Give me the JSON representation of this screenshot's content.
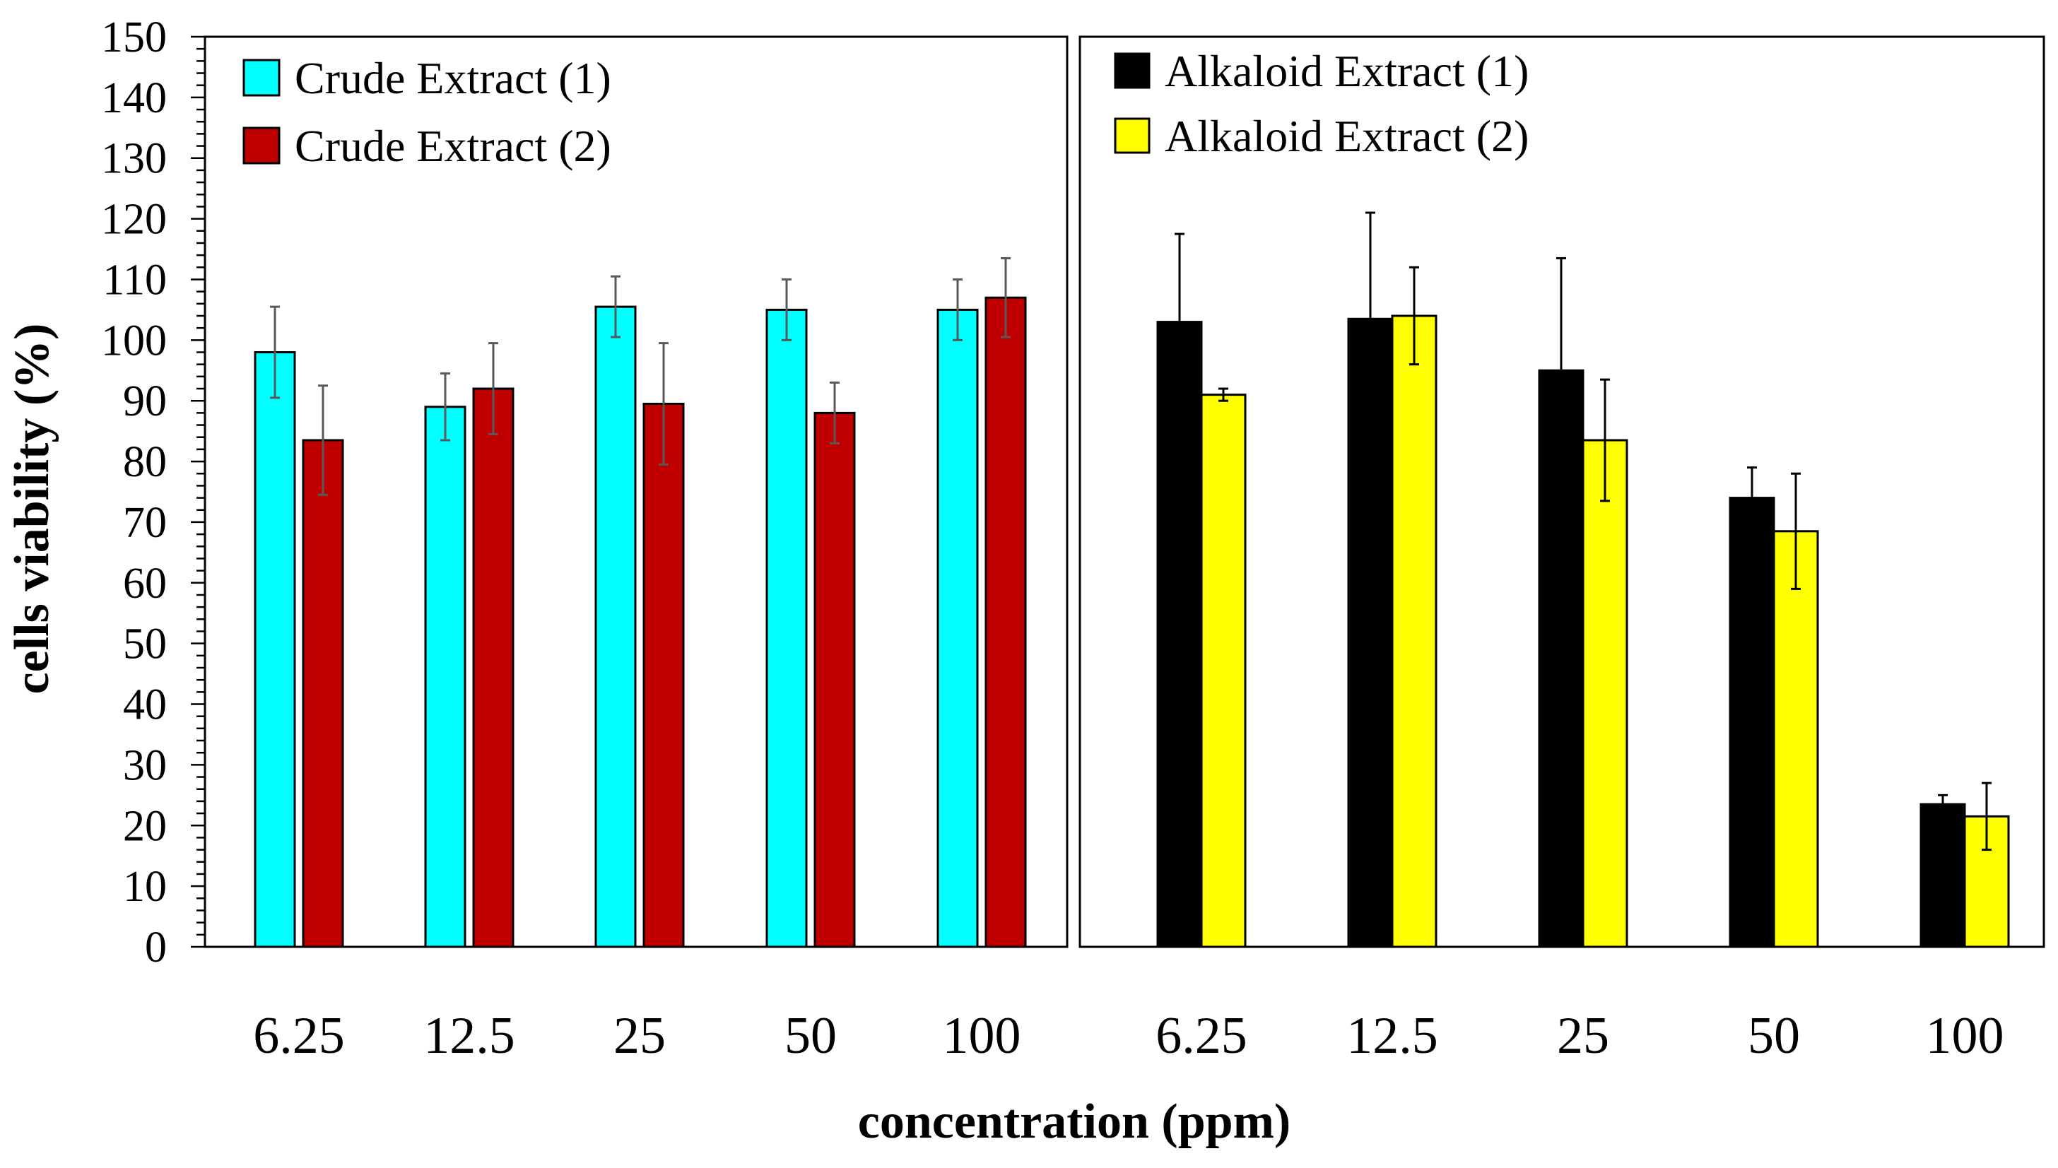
{
  "chart_data": {
    "type": "bar",
    "xlabel": "concentration (ppm)",
    "ylabel": "cells viability (%)",
    "ylim": [
      0,
      150
    ],
    "yticks": [
      "0",
      "10",
      "20",
      "30",
      "40",
      "50",
      "60",
      "70",
      "80",
      "90",
      "100",
      "110",
      "120",
      "130",
      "140",
      "150"
    ],
    "panels": [
      {
        "categories": [
          "6.25",
          "12.5",
          "25",
          "50",
          "100"
        ],
        "series": [
          {
            "name": "Crude Extract (1)",
            "color": "#00ffff",
            "errorColor": "#595959",
            "values": [
              98,
              89,
              105.5,
              105,
              105
            ],
            "errors": [
              7.5,
              5.5,
              5,
              5,
              5
            ]
          },
          {
            "name": "Crude Extract (2)",
            "color": "#c00000",
            "errorColor": "#595959",
            "values": [
              83.5,
              92,
              89.5,
              88,
              107
            ],
            "errors": [
              9,
              7.5,
              10,
              5,
              6.5
            ]
          }
        ]
      },
      {
        "categories": [
          "6.25",
          "12.5",
          "25",
          "50",
          "100"
        ],
        "series": [
          {
            "name": "Alkaloid Extract (1)",
            "color": "#000000",
            "errorColor": "#000000",
            "values": [
              103,
              103.5,
              95,
              74,
              23.5
            ],
            "errors": [
              14.5,
              17.5,
              18.5,
              5,
              1.5
            ]
          },
          {
            "name": "Alkaloid Extract (2)",
            "color": "#ffff00",
            "errorColor": "#000000",
            "values": [
              91,
              104,
              83.5,
              68.5,
              21.5
            ],
            "errors": [
              1,
              8,
              10,
              9.5,
              5.5
            ]
          }
        ]
      }
    ]
  }
}
